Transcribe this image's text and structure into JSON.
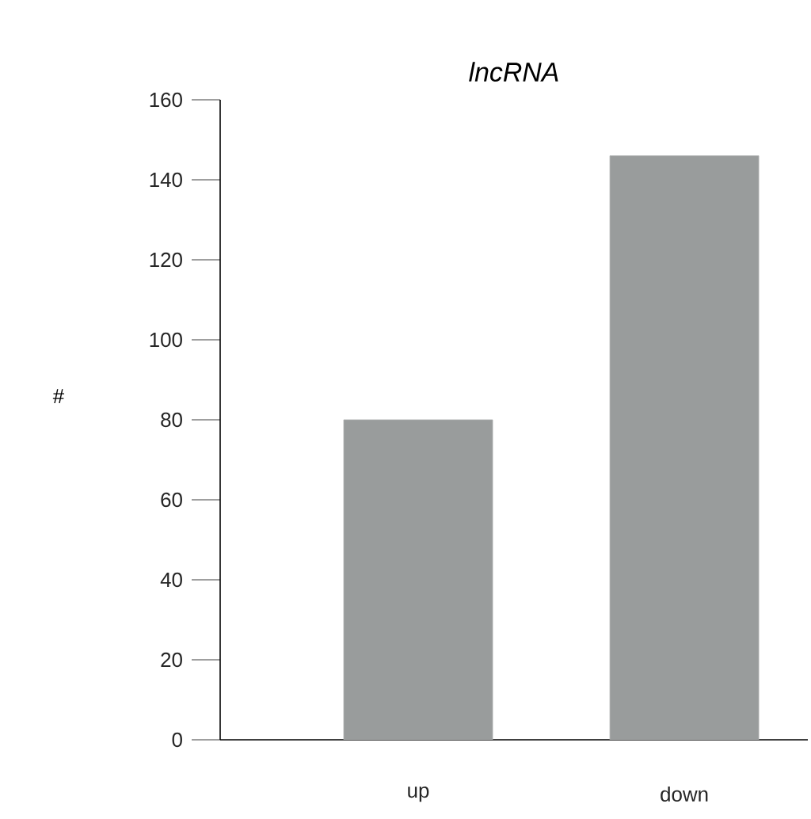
{
  "chart_data": {
    "type": "bar",
    "title": "lncRNA",
    "ylabel": "#",
    "categories": [
      "up",
      "down"
    ],
    "values": [
      80,
      146
    ],
    "color": "#999c9c",
    "ylim": [
      0,
      160
    ],
    "yticks": [
      0,
      20,
      40,
      60,
      80,
      100,
      120,
      140,
      160
    ],
    "grid": false
  }
}
